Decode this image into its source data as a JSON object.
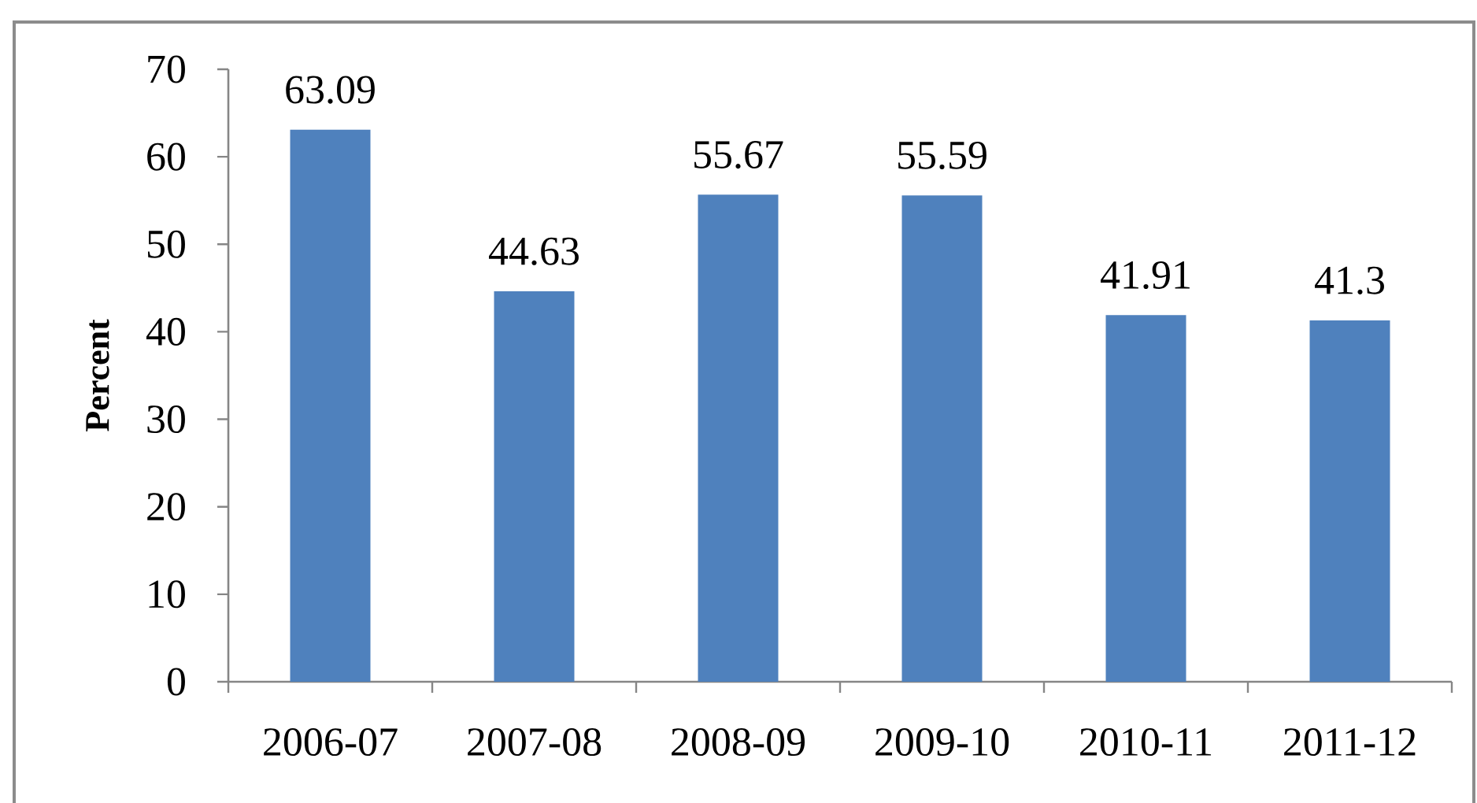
{
  "chart_data": {
    "type": "bar",
    "ylabel": "Percent",
    "categories": [
      "2006-07",
      "2007-08",
      "2008-09",
      "2009-10",
      "2010-11",
      "2011-12"
    ],
    "values": [
      63.09,
      44.63,
      55.67,
      55.59,
      41.91,
      41.3
    ],
    "color": "#4f81bd",
    "ylim": [
      0,
      70
    ],
    "yticks": [
      0,
      10,
      20,
      30,
      40,
      50,
      60,
      70
    ],
    "data_labels": true
  }
}
